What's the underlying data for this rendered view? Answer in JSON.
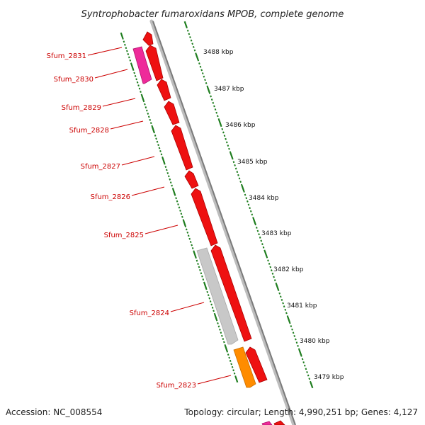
{
  "title": "Syntrophobacter fumaroxidans MPOB, complete genome",
  "footer": {
    "accession": "Accession: NC_008554",
    "topology": "Topology: circular; Length: 4,990,251 bp; Genes: 4,127"
  },
  "colors": {
    "gene_forward": "#ee1111",
    "gene_reverse_pink": "#ee2a9a",
    "gene_reverse_gray": "#c8c8c8",
    "gene_reverse_orange": "#ff8c00",
    "backbone": "#909090",
    "tick": "#1e7d1e",
    "label": "#cc0000"
  },
  "gene_labels": [
    "Sfum_2831",
    "Sfum_2830",
    "Sfum_2829",
    "Sfum_2828",
    "Sfum_2827",
    "Sfum_2826",
    "Sfum_2825",
    "Sfum_2824",
    "Sfum_2823"
  ],
  "kbp_labels": [
    "3488 kbp",
    "3487 kbp",
    "3486 kbp",
    "3485 kbp",
    "3484 kbp",
    "3483 kbp",
    "3482 kbp",
    "3481 kbp",
    "3480 kbp",
    "3479 kbp"
  ]
}
